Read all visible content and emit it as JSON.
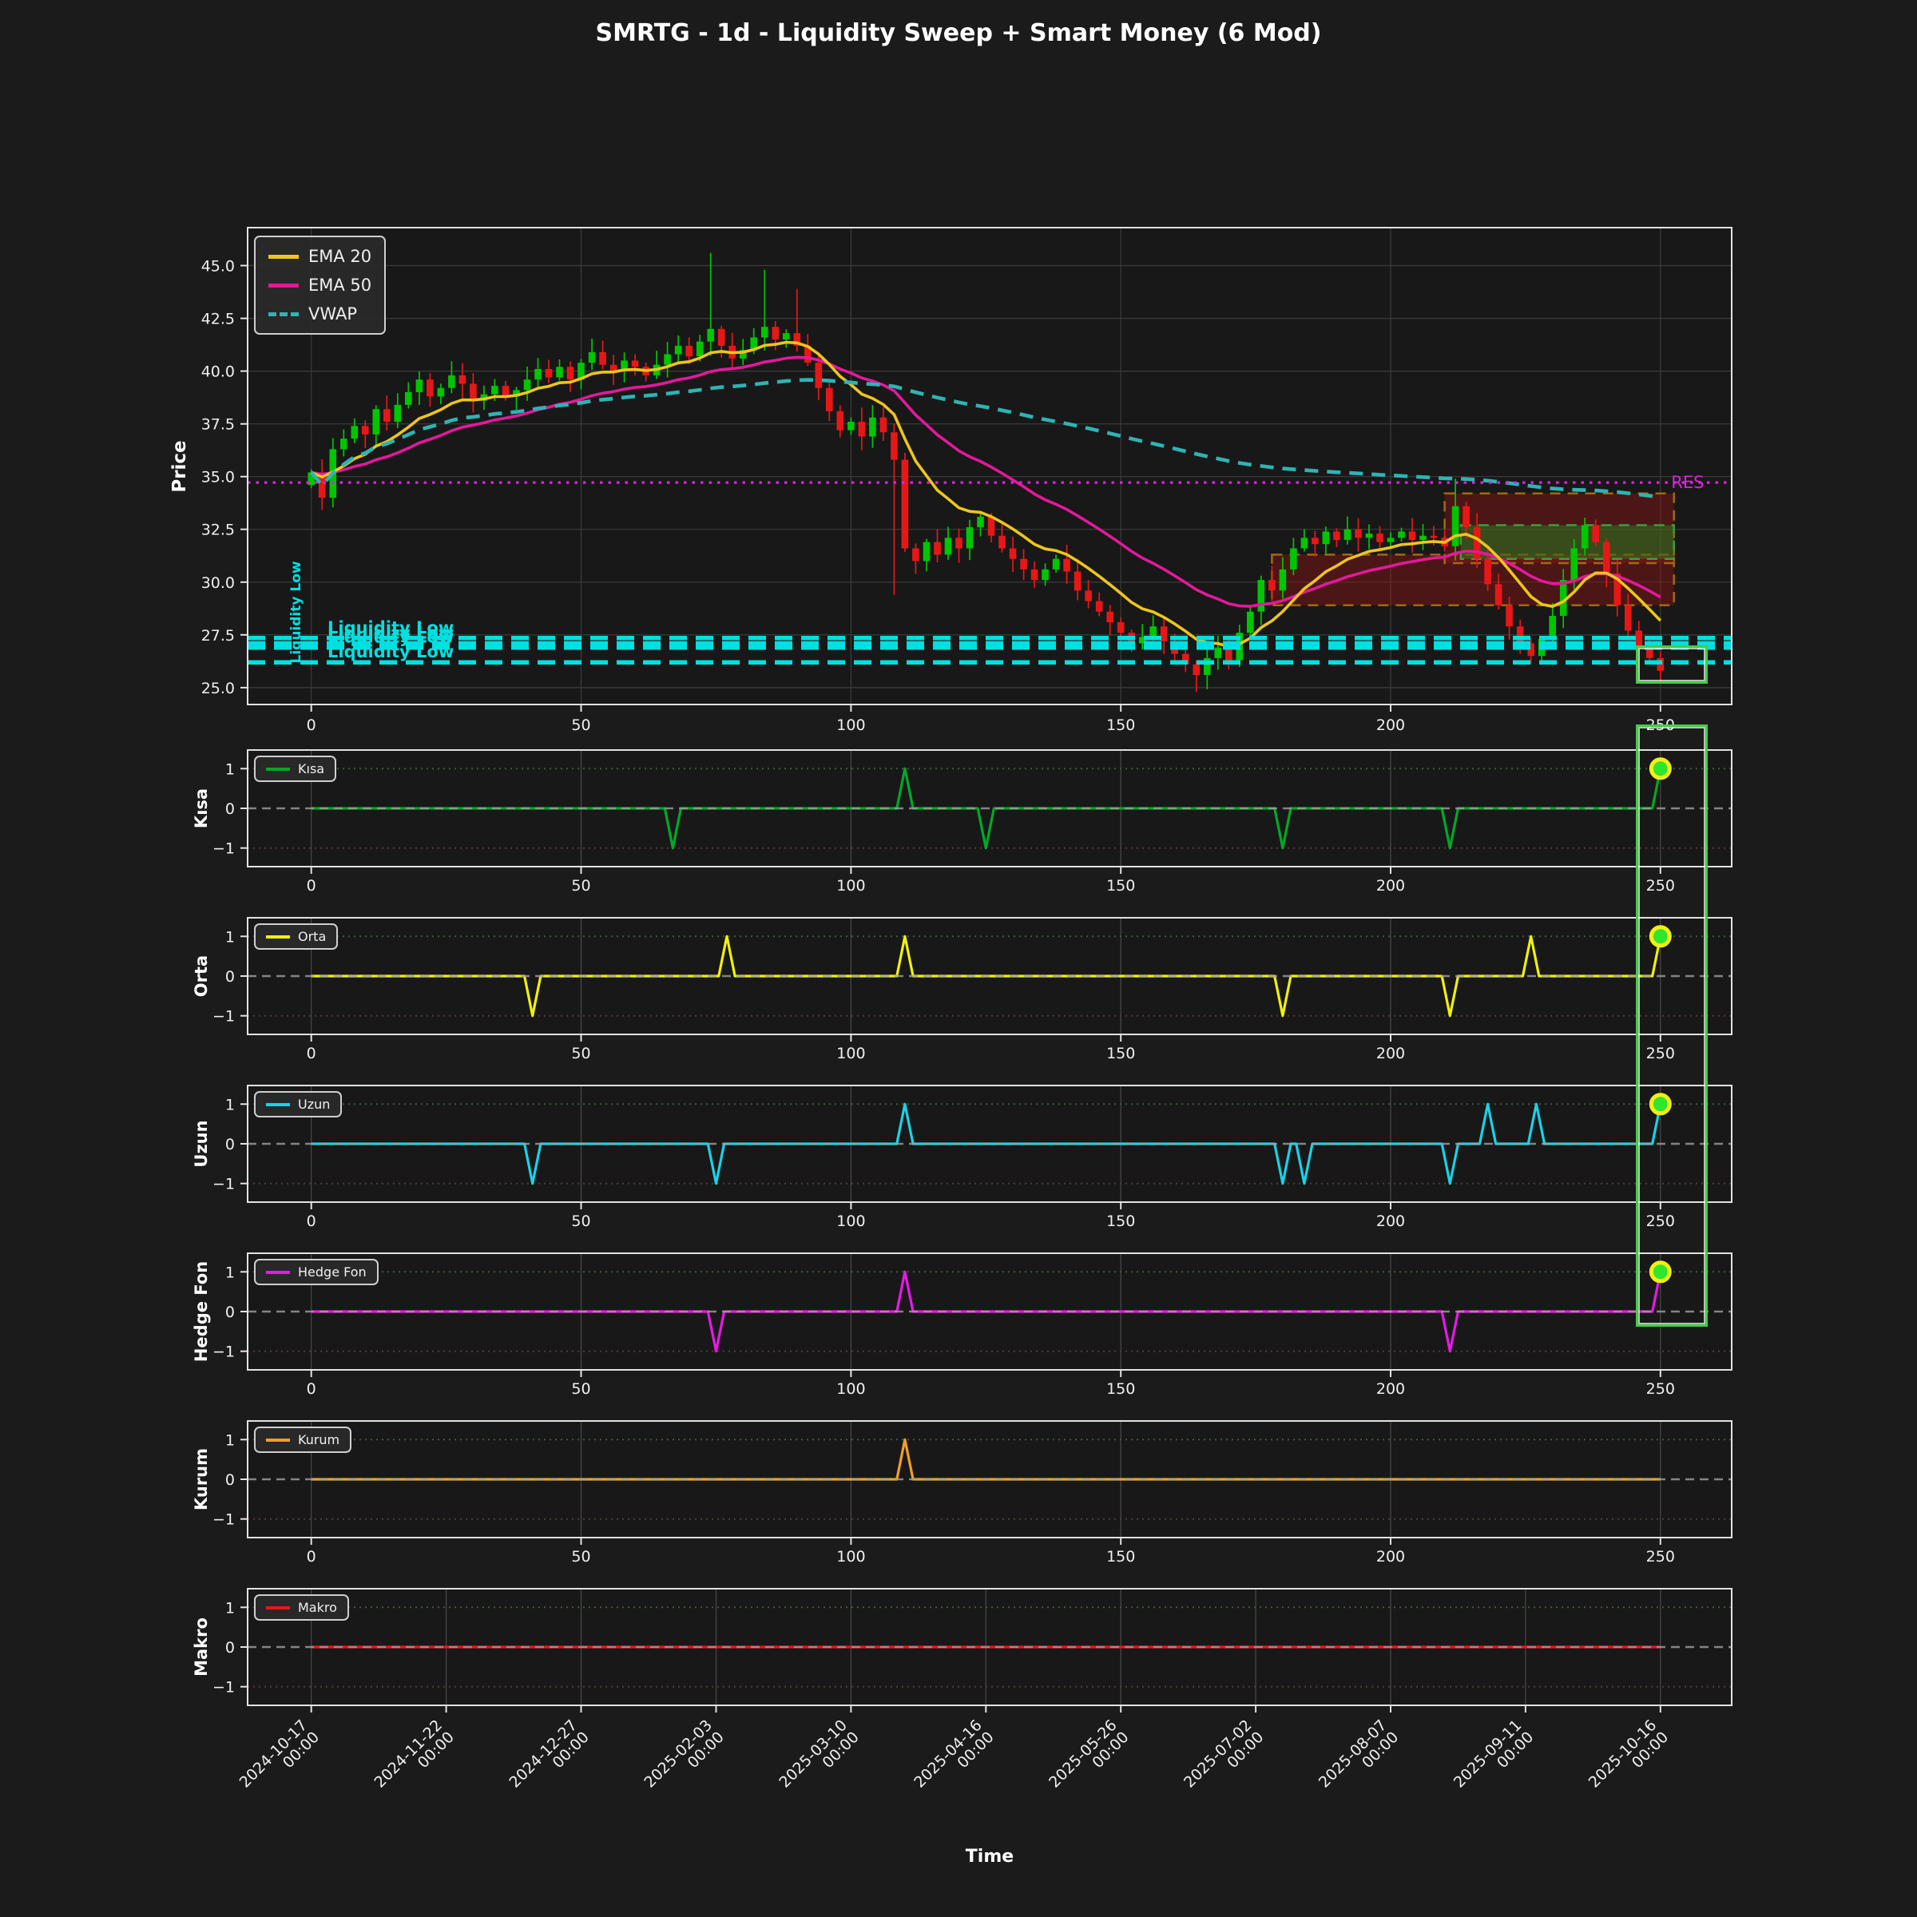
{
  "title": "SMRTG - 1d - Liquidity Sweep + Smart Money (6 Mod)",
  "xlabel": "Time",
  "chart_data": {
    "type": "candlestick+signal-subplots",
    "main": {
      "ylabel": "Price",
      "yticks": [
        25.0,
        27.5,
        30.0,
        32.5,
        35.0,
        37.5,
        40.0,
        42.5,
        45.0
      ],
      "xticks": [
        0,
        50,
        100,
        150,
        200,
        250
      ],
      "ylim": [
        24.2,
        46.8
      ],
      "xlim": [
        -11.8,
        263.2
      ],
      "legend": [
        {
          "label": "EMA 20",
          "color": "#edc51e",
          "dash": false
        },
        {
          "label": "EMA 50",
          "color": "#e2199a",
          "dash": false
        },
        {
          "label": "VWAP",
          "color": "#2fb3b3",
          "dash": true
        }
      ],
      "res": {
        "y": 34.72,
        "label": "RES",
        "color": "#dd22dd"
      },
      "liquidity": {
        "label": "Liquidity Low",
        "color": "#00e0e0",
        "levels": [
          27.35,
          27.1,
          26.9,
          26.2
        ]
      },
      "zones": [
        {
          "x0": 178,
          "x1": 252.5,
          "y0": 28.9,
          "y1": 31.3,
          "fill": "rgba(150,22,22,0.42)",
          "edge": "#a06a10"
        },
        {
          "x0": 210,
          "x1": 252.5,
          "y0": 30.9,
          "y1": 34.2,
          "fill": "rgba(150,22,22,0.42)",
          "edge": "#a06a10"
        },
        {
          "x0": 213,
          "x1": 252.5,
          "y0": 31.1,
          "y1": 32.7,
          "fill": "rgba(34,140,34,0.45)",
          "edge": "#3f9b3f"
        }
      ],
      "highlight_box": {
        "x0": 245.5,
        "x1": 258.8,
        "y0": 25.2,
        "y1": 27.0,
        "color": "#44cc44"
      },
      "candles": {
        "x_start": 0,
        "x_step": 2,
        "first_open": 34.6,
        "up_color": "#00c600",
        "down_color": "#e81717",
        "closes": [
          35.2,
          34.0,
          36.3,
          36.8,
          37.4,
          37.0,
          38.2,
          37.6,
          38.4,
          39.0,
          39.6,
          38.8,
          39.2,
          39.8,
          39.4,
          38.6,
          38.9,
          39.3,
          38.8,
          39.1,
          39.6,
          40.1,
          39.7,
          40.2,
          39.6,
          40.4,
          40.9,
          40.3,
          40.0,
          40.5,
          40.2,
          39.8,
          40.3,
          40.8,
          41.2,
          40.7,
          41.4,
          42.0,
          41.2,
          40.6,
          41.0,
          41.6,
          42.1,
          41.5,
          41.8,
          41.2,
          40.4,
          39.2,
          38.1,
          37.2,
          37.6,
          36.9,
          37.8,
          37.1,
          35.8,
          31.6,
          31.0,
          31.9,
          31.3,
          32.1,
          31.6,
          32.6,
          33.1,
          32.2,
          31.6,
          31.1,
          30.6,
          30.1,
          30.6,
          31.1,
          30.5,
          29.6,
          29.1,
          28.6,
          28.1,
          27.6,
          27.1,
          27.4,
          27.9,
          27.2,
          26.6,
          26.1,
          25.6,
          26.4,
          26.9,
          26.3,
          27.6,
          28.6,
          30.1,
          29.6,
          30.6,
          31.6,
          32.1,
          31.8,
          32.4,
          32.0,
          32.5,
          32.1,
          32.3,
          31.9,
          32.1,
          32.4,
          32.0,
          32.2,
          32.1,
          31.7,
          33.6,
          32.6,
          31.1,
          29.9,
          28.9,
          27.9,
          27.1,
          26.5,
          27.3,
          28.4,
          30.1,
          31.6,
          32.7,
          31.9,
          30.4,
          28.9,
          27.7,
          27.0,
          26.4,
          25.8
        ],
        "wick_overrides": [
          {
            "i": 37,
            "high": 45.6
          },
          {
            "i": 42,
            "high": 44.8
          },
          {
            "i": 45,
            "high": 43.9
          },
          {
            "i": 54,
            "low": 29.4
          },
          {
            "i": 82,
            "low": 24.8
          },
          {
            "i": 106,
            "high": 34.9
          },
          {
            "i": 125,
            "low": 25.2
          }
        ]
      }
    },
    "signal_panels": [
      {
        "label": "Kısa",
        "color": "#00a928",
        "spikes": [
          [
            67,
            -1
          ],
          [
            110,
            1
          ],
          [
            125,
            -1
          ],
          [
            180,
            -1
          ],
          [
            211,
            -1
          ]
        ],
        "end": {
          "x": 250,
          "v": 1,
          "marker": true
        }
      },
      {
        "label": "Orta",
        "color": "#f0f00a",
        "spikes": [
          [
            41,
            -1
          ],
          [
            77,
            1
          ],
          [
            110,
            1
          ],
          [
            180,
            -1
          ],
          [
            211,
            -1
          ],
          [
            226,
            1
          ]
        ],
        "end": {
          "x": 250,
          "v": 1,
          "marker": true
        }
      },
      {
        "label": "Uzun",
        "color": "#19d2e8",
        "spikes": [
          [
            41,
            -1
          ],
          [
            75,
            -1
          ],
          [
            110,
            1
          ],
          [
            180,
            -1
          ],
          [
            184,
            -1
          ],
          [
            211,
            -1
          ],
          [
            218,
            1
          ],
          [
            227,
            1
          ]
        ],
        "end": {
          "x": 250,
          "v": 1,
          "marker": true
        }
      },
      {
        "label": "Hedge Fon",
        "color": "#e819e8",
        "spikes": [
          [
            75,
            -1
          ],
          [
            110,
            1
          ],
          [
            211,
            -1
          ]
        ],
        "end": {
          "x": 250,
          "v": 1,
          "marker": true
        }
      },
      {
        "label": "Kurum",
        "color": "#f0a022",
        "spikes": [
          [
            110,
            1
          ]
        ],
        "end": {
          "x": 250,
          "v": 0,
          "marker": false
        }
      },
      {
        "label": "Makro",
        "color": "#ee1515",
        "spikes": [],
        "end": {
          "x": 250,
          "v": 0,
          "marker": false
        }
      }
    ],
    "panel_yticks": [
      1,
      0,
      -1
    ],
    "panel_xticks": [
      0,
      50,
      100,
      150,
      200,
      250
    ],
    "marker_style": {
      "face": "#2ee62e",
      "edge": "#f3ef15"
    },
    "ref_lines": {
      "zero": "#a0a0a0",
      "plus": "#3c5c3c",
      "minus": "#5c3838"
    },
    "highlight_band": {
      "x0": 245.5,
      "x1": 258.8,
      "color": "#44cc44"
    },
    "date_axis": {
      "ticks": [
        {
          "x": 0,
          "date": "2024-10-17",
          "time": "00:00"
        },
        {
          "x": 25,
          "date": "2024-11-22",
          "time": "00:00"
        },
        {
          "x": 50,
          "date": "2024-12-27",
          "time": "00:00"
        },
        {
          "x": 75,
          "date": "2025-02-03",
          "time": "00:00"
        },
        {
          "x": 100,
          "date": "2025-03-10",
          "time": "00:00"
        },
        {
          "x": 125,
          "date": "2025-04-16",
          "time": "00:00"
        },
        {
          "x": 150,
          "date": "2025-05-26",
          "time": "00:00"
        },
        {
          "x": 175,
          "date": "2025-07-02",
          "time": "00:00"
        },
        {
          "x": 200,
          "date": "2025-08-07",
          "time": "00:00"
        },
        {
          "x": 225,
          "date": "2025-09-11",
          "time": "00:00"
        },
        {
          "x": 250,
          "date": "2025-10-16",
          "time": "00:00"
        }
      ]
    }
  }
}
